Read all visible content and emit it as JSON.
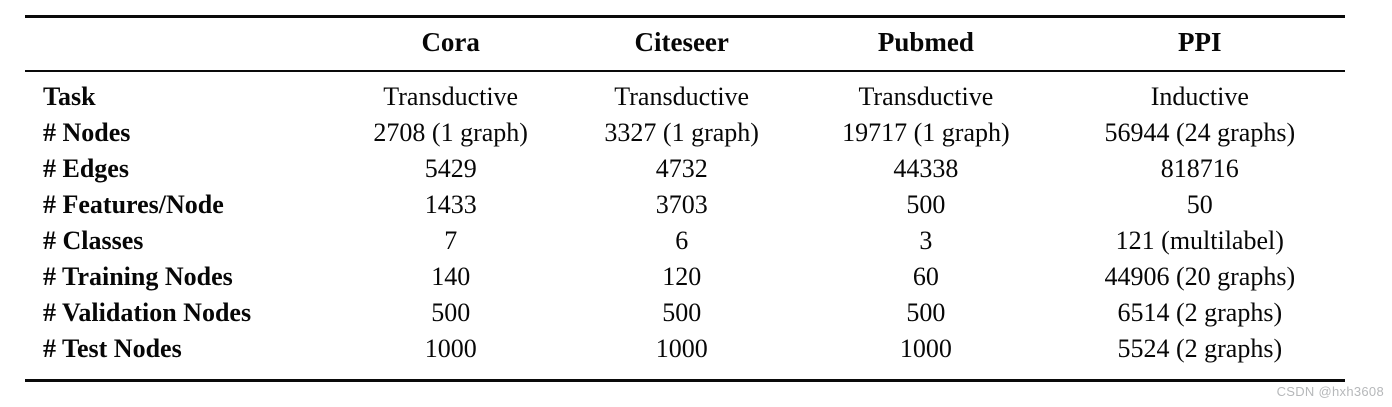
{
  "table": {
    "columns": [
      "Cora",
      "Citeseer",
      "Pubmed",
      "PPI"
    ],
    "rows": [
      {
        "label": "Task",
        "values": [
          "Transductive",
          "Transductive",
          "Transductive",
          "Inductive"
        ]
      },
      {
        "label": "# Nodes",
        "values": [
          "2708 (1 graph)",
          "3327 (1 graph)",
          "19717 (1 graph)",
          "56944 (24 graphs)"
        ]
      },
      {
        "label": "# Edges",
        "values": [
          "5429",
          "4732",
          "44338",
          "818716"
        ]
      },
      {
        "label": "# Features/Node",
        "values": [
          "1433",
          "3703",
          "500",
          "50"
        ]
      },
      {
        "label": "# Classes",
        "values": [
          "7",
          "6",
          "3",
          "121 (multilabel)"
        ]
      },
      {
        "label": "# Training Nodes",
        "values": [
          "140",
          "120",
          "60",
          "44906 (20 graphs)"
        ]
      },
      {
        "label": "# Validation Nodes",
        "values": [
          "500",
          "500",
          "500",
          "6514 (2 graphs)"
        ]
      },
      {
        "label": "# Test Nodes",
        "values": [
          "1000",
          "1000",
          "1000",
          "5524 (2 graphs)"
        ]
      }
    ]
  },
  "watermark": "CSDN @hxh3608",
  "colors": {
    "background": "#ffffff",
    "text": "#070707",
    "rule": "#0a0a0a",
    "watermark": "#b6b8ba"
  }
}
